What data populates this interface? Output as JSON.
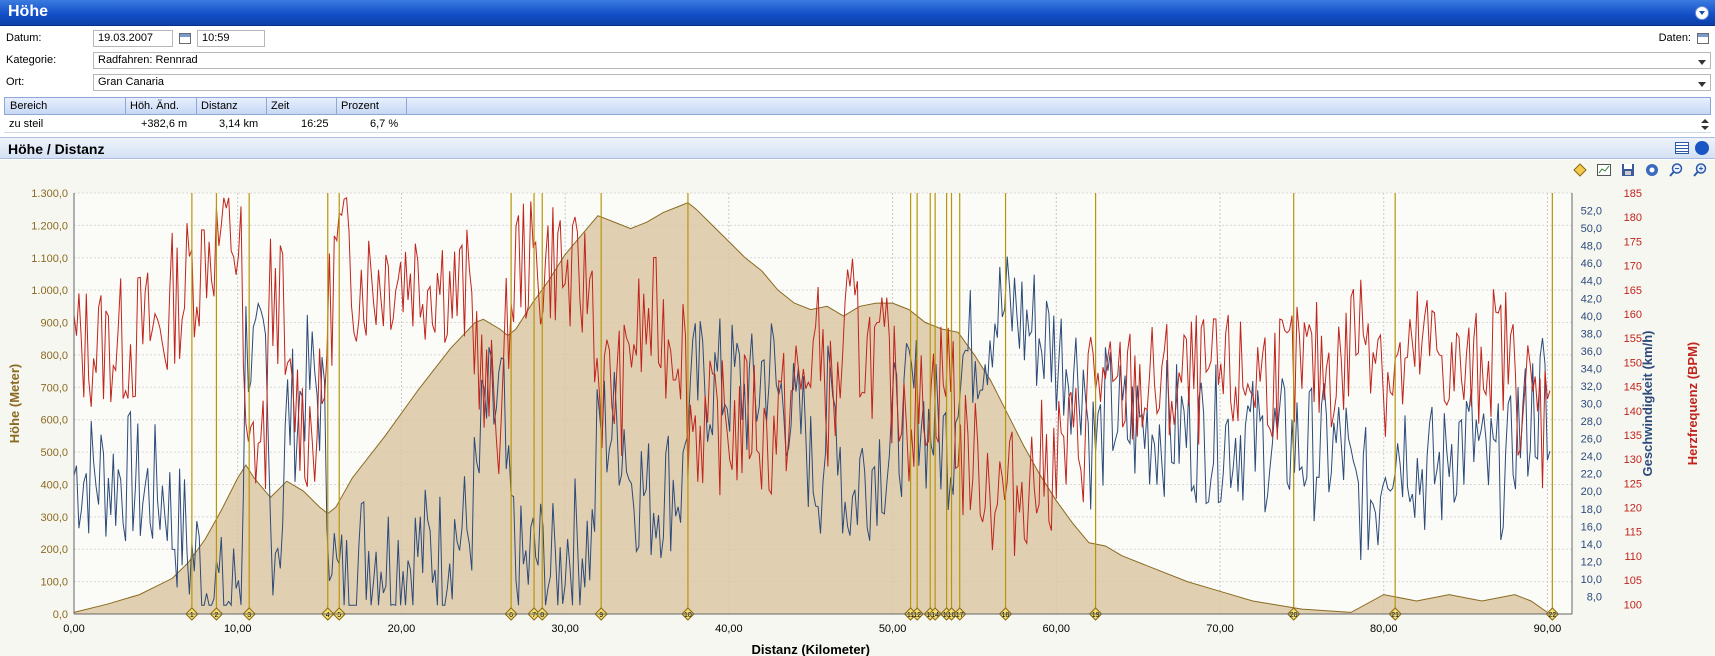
{
  "window": {
    "title": "Höhe"
  },
  "form": {
    "datum_label": "Datum:",
    "datum_value": "19.03.2007",
    "time_value": "10:59",
    "daten_label": "Daten:",
    "kategorie_label": "Kategorie:",
    "kategorie_value": "Radfahren: Rennrad",
    "ort_label": "Ort:",
    "ort_value": "Gran Canaria"
  },
  "grid": {
    "columns": [
      "Bereich",
      "Höh. Änd.",
      "Distanz",
      "Zeit",
      "Prozent"
    ],
    "rows": [
      [
        "zu steil",
        "+382,6 m",
        "3,14 km",
        "16:25",
        "6,7 %"
      ]
    ]
  },
  "section": {
    "title": "Höhe / Distanz"
  },
  "toolbar_icons": [
    "diamond-icon",
    "chart-icon",
    "save-icon",
    "settings-icon",
    "zoom-out-icon",
    "zoom-in-icon"
  ],
  "colors": {
    "elevation": "#8a6a20",
    "elevation_fill": "#dcc7a5",
    "speed": "#2c4a7a",
    "heartrate": "#c0241c",
    "markers": "#b8960c"
  },
  "chart_data": {
    "type": "line",
    "xlabel": "Distanz (Kilometer)",
    "xlim": [
      0,
      91.5
    ],
    "x_ticks": [
      "0,00",
      "10,00",
      "20,00",
      "30,00",
      "40,00",
      "50,00",
      "60,00",
      "70,00",
      "80,00",
      "90,00"
    ],
    "axes": [
      {
        "id": "hoehe",
        "label": "Höhe (Meter)",
        "ylim": [
          0,
          1300
        ],
        "ticks": [
          "0,0",
          "100,0",
          "200,0",
          "300,0",
          "400,0",
          "500,0",
          "600,0",
          "700,0",
          "800,0",
          "900,0",
          "1.000,0",
          "1.100,0",
          "1.200,0",
          "1.300,0"
        ]
      },
      {
        "id": "speed",
        "label": "Geschwindigkeit (km/h)",
        "ylim": [
          6,
          54
        ],
        "ticks": [
          "8,0",
          "10,0",
          "12,0",
          "14,0",
          "16,0",
          "18,0",
          "20,0",
          "22,0",
          "24,0",
          "26,0",
          "28,0",
          "30,0",
          "32,0",
          "34,0",
          "36,0",
          "38,0",
          "40,0",
          "42,0",
          "44,0",
          "46,0",
          "48,0",
          "50,0",
          "52,0"
        ]
      },
      {
        "id": "hr",
        "label": "Herzfrequenz (BPM)",
        "ylim": [
          98,
          185
        ],
        "ticks": [
          "100",
          "105",
          "110",
          "115",
          "120",
          "125",
          "130",
          "135",
          "140",
          "145",
          "150",
          "155",
          "160",
          "165",
          "170",
          "175",
          "180",
          "185"
        ]
      }
    ],
    "series": [
      {
        "name": "Höhe",
        "axis": "hoehe",
        "x": [
          0,
          2,
          4,
          6,
          7,
          8,
          9,
          10,
          10.5,
          11,
          12,
          13,
          14,
          15,
          15.5,
          16,
          17,
          19,
          21,
          23,
          24.5,
          25,
          26,
          26.5,
          27,
          28,
          29,
          30,
          31,
          32,
          33,
          34,
          35,
          36,
          37,
          37.5,
          38,
          39,
          40,
          41,
          42,
          43,
          44,
          45,
          46,
          47,
          48,
          49,
          50,
          51,
          52,
          53,
          54,
          55,
          56,
          57,
          58,
          59,
          60,
          61,
          62,
          63,
          64,
          66,
          68,
          70,
          72,
          75,
          78,
          80,
          82,
          84,
          86,
          88,
          89,
          90
        ],
        "y": [
          5,
          30,
          60,
          110,
          160,
          230,
          320,
          420,
          460,
          420,
          360,
          410,
          380,
          330,
          310,
          330,
          420,
          550,
          690,
          820,
          900,
          910,
          880,
          860,
          880,
          960,
          1030,
          1110,
          1170,
          1230,
          1210,
          1190,
          1210,
          1240,
          1260,
          1270,
          1250,
          1200,
          1150,
          1100,
          1060,
          1000,
          960,
          940,
          950,
          920,
          950,
          960,
          960,
          940,
          900,
          880,
          870,
          800,
          720,
          620,
          520,
          430,
          350,
          280,
          220,
          210,
          180,
          140,
          100,
          70,
          40,
          15,
          5,
          60,
          40,
          60,
          40,
          60,
          40,
          5
        ]
      },
      {
        "name": "Geschwindigkeit",
        "axis": "speed"
      },
      {
        "name": "Herzfrequenz",
        "axis": "hr"
      }
    ],
    "markers": [
      {
        "label": "1",
        "x": 7.2
      },
      {
        "label": "2",
        "x": 8.7
      },
      {
        "label": "3",
        "x": 10.7
      },
      {
        "label": "4",
        "x": 15.5
      },
      {
        "label": "5",
        "x": 16.2
      },
      {
        "label": "6",
        "x": 26.7
      },
      {
        "label": "7",
        "x": 28.1
      },
      {
        "label": "8",
        "x": 28.6
      },
      {
        "label": "9",
        "x": 32.2
      },
      {
        "label": "10",
        "x": 37.5
      },
      {
        "label": "11",
        "x": 51.1
      },
      {
        "label": "12",
        "x": 51.5
      },
      {
        "label": "13",
        "x": 52.3
      },
      {
        "label": "14",
        "x": 52.6
      },
      {
        "label": "15",
        "x": 53.3
      },
      {
        "label": "16",
        "x": 53.6
      },
      {
        "label": "17",
        "x": 54.1
      },
      {
        "label": "18",
        "x": 56.9
      },
      {
        "label": "19",
        "x": 62.4
      },
      {
        "label": "20",
        "x": 74.5
      },
      {
        "label": "21",
        "x": 80.7
      },
      {
        "label": "22",
        "x": 90.3
      }
    ]
  }
}
